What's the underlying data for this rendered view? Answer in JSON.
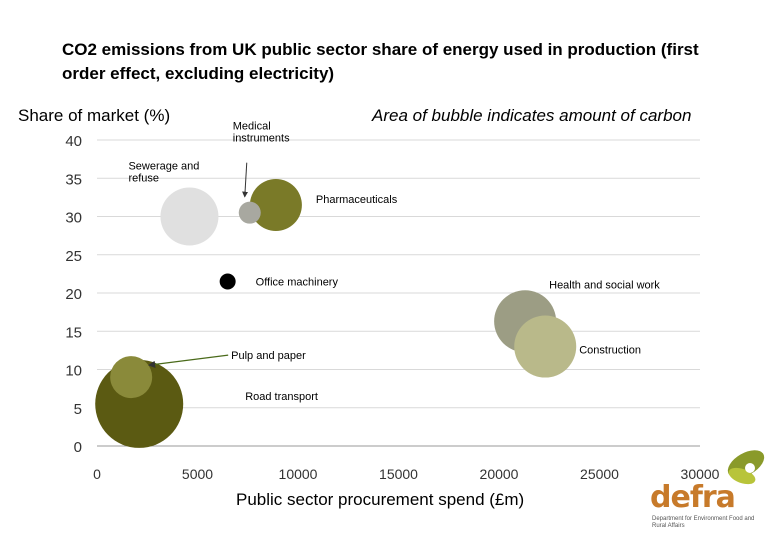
{
  "chart_data": {
    "type": "scatter",
    "title": "CO2 emissions from UK public sector share of energy used in production (first order effect, excluding electricity)",
    "ylabel": "Share of market (%)",
    "xlabel": "Public sector procurement spend (£m)",
    "note": "Area of bubble indicates amount of carbon",
    "xlim": [
      0,
      30000
    ],
    "ylim": [
      0,
      40
    ],
    "xticks": [
      0,
      5000,
      10000,
      15000,
      20000,
      25000,
      30000
    ],
    "yticks": [
      0,
      5,
      10,
      15,
      20,
      25,
      30,
      35,
      40
    ],
    "grid": true,
    "points": [
      {
        "name": "Road transport",
        "label": "Road transport",
        "x": 2100,
        "y": 5.5,
        "size": 44,
        "color": "#5b5a12"
      },
      {
        "name": "Pulp and paper",
        "label": "Pulp and paper",
        "x": 1700,
        "y": 9,
        "size": 21,
        "color": "#8a8a3a"
      },
      {
        "name": "Sewerage and refuse",
        "label": "Sewerage and refuse",
        "x": 4600,
        "y": 30,
        "size": 29,
        "color": "#e0e0e0"
      },
      {
        "name": "Medical instruments",
        "label": "Medical instruments",
        "x": 7600,
        "y": 30.5,
        "size": 11,
        "color": "#a8a8a0"
      },
      {
        "name": "Pharmaceuticals",
        "label": "Pharmaceuticals",
        "x": 8900,
        "y": 31.5,
        "size": 26,
        "color": "#7a7a28"
      },
      {
        "name": "Office machinery",
        "label": "Office machinery",
        "x": 6500,
        "y": 21.5,
        "size": 8,
        "color": "#000000"
      },
      {
        "name": "Health and social work",
        "label": "Health and social work",
        "x": 21300,
        "y": 16.3,
        "size": 31,
        "color": "#9c9d84"
      },
      {
        "name": "Construction",
        "label": "Construction",
        "x": 22300,
        "y": 13,
        "size": 31,
        "color": "#b9b98a"
      }
    ]
  },
  "logo": {
    "word": "defra",
    "subtitle": "Department for Environment Food and Rural Affairs",
    "colors": [
      "#8a9a2a",
      "#b8c43a",
      "#c77a2a"
    ]
  }
}
